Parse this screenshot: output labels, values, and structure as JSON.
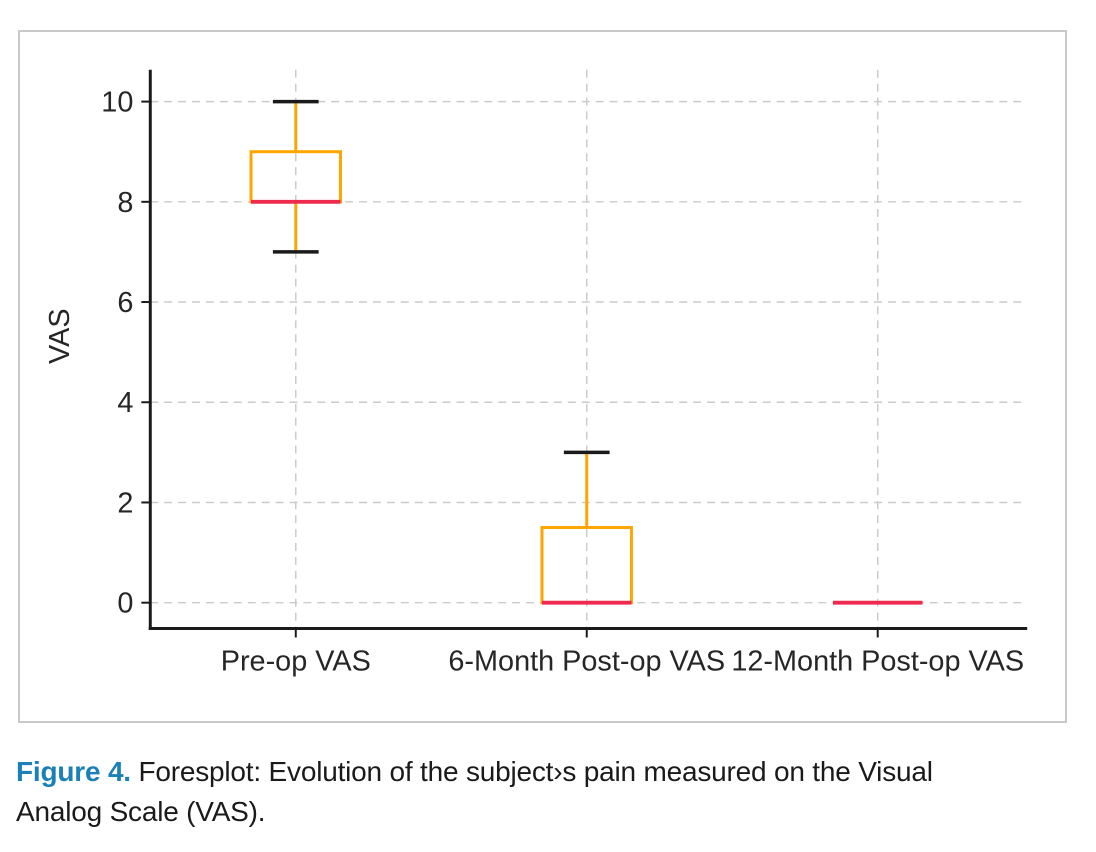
{
  "figure": {
    "caption_label": "Figure 4.",
    "caption_text": " Foresplot: Evolution of the subject›s pain measured on the Visual Analog Scale (VAS)."
  },
  "chart_data": {
    "type": "boxplot",
    "title": "",
    "xlabel": "",
    "ylabel": "VAS",
    "ylim": [
      0,
      10
    ],
    "yticks": [
      0,
      2,
      4,
      6,
      8,
      10
    ],
    "grid": "dashed-both-axes",
    "legend": "none",
    "categories": [
      "Pre-op VAS",
      "6-Month Post-op VAS",
      "12-Month Post-op VAS"
    ],
    "boxes": [
      {
        "category": "Pre-op VAS",
        "whisker_low": 7,
        "q1": 8,
        "median": 8,
        "q3": 9,
        "whisker_high": 10
      },
      {
        "category": "6-Month Post-op VAS",
        "whisker_low": 0,
        "q1": 0,
        "median": 0,
        "q3": 1.5,
        "whisker_high": 3
      },
      {
        "category": "12-Month Post-op VAS",
        "whisker_low": 0,
        "q1": 0,
        "median": 0,
        "q3": 0,
        "whisker_high": 0
      }
    ],
    "colors": {
      "box": "#FFA500",
      "whisker": "#FFA500",
      "cap": "#1a1a1a",
      "median": "#ee2b4e",
      "axis": "#1a1a1a",
      "grid": "#cbcbcb",
      "tick_label": "#262626",
      "caption_accent": "#1b7fb8",
      "caption_text": "#1a1a1a"
    }
  }
}
